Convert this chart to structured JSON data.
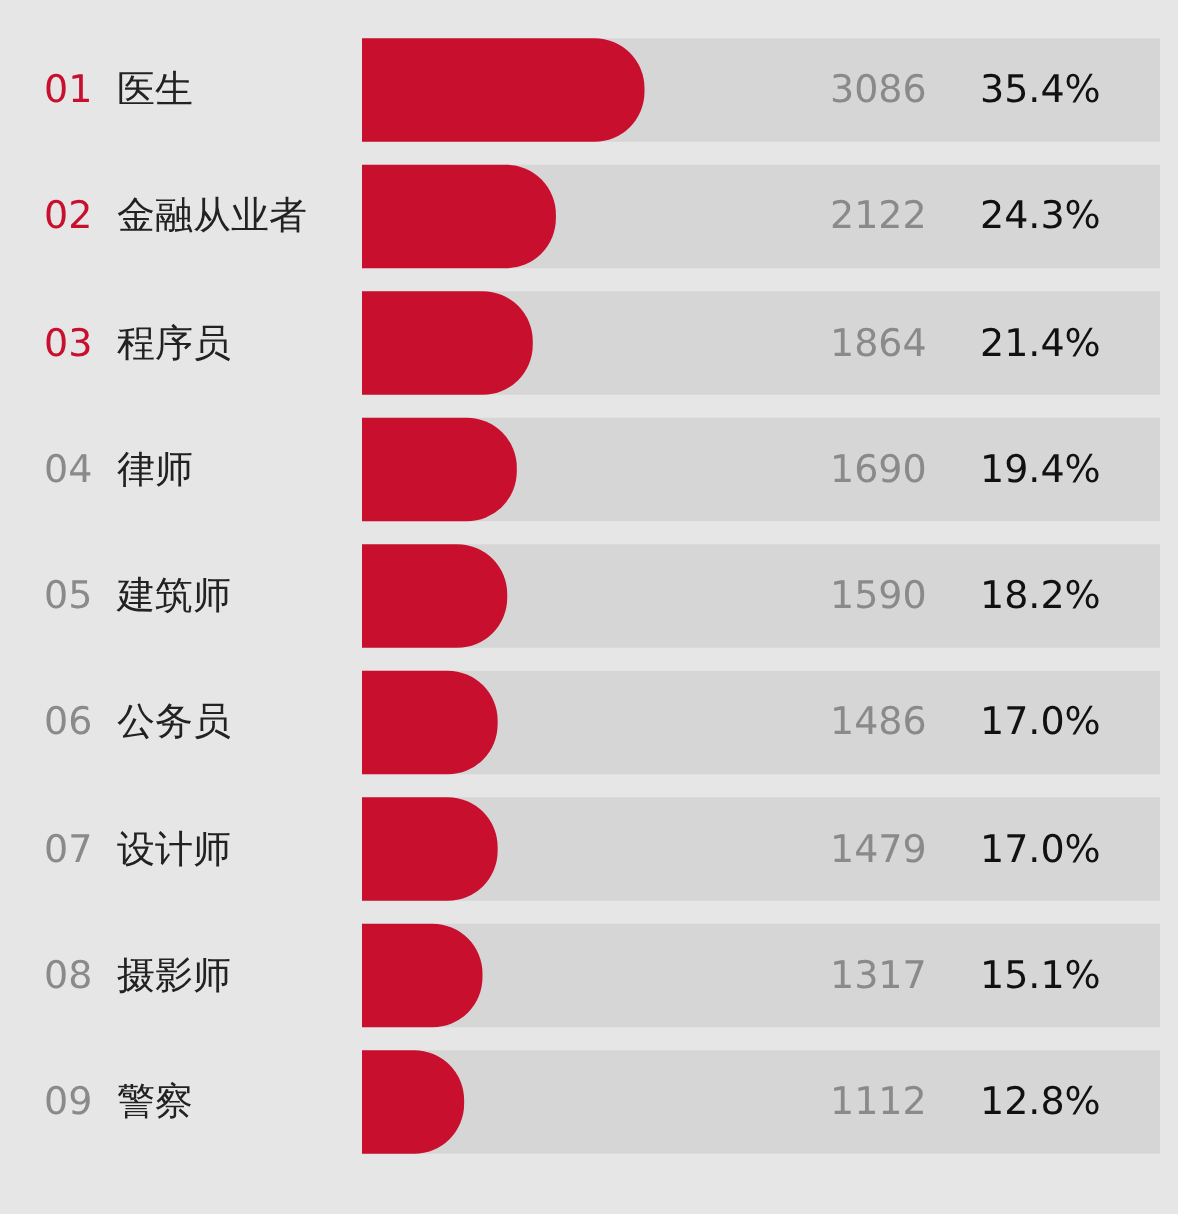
{
  "chart_data": {
    "type": "bar",
    "orientation": "horizontal",
    "categories": [
      "01 医生",
      "02 金融从业者",
      "03 程序员",
      "04 律师",
      "05 建筑师",
      "06 公务员",
      "07 设计师",
      "08 摄影师",
      "09 警察"
    ],
    "series": [
      {
        "color": "#c8102e",
        "values": [
          35.4,
          24.3,
          21.4,
          19.4,
          18.2,
          17.0,
          17.0,
          15.1,
          12.8
        ],
        "value_labels": [
          "35.4%",
          "24.3%",
          "21.4%",
          "19.4%",
          "18.2%",
          "17.0%",
          "17.0%",
          "15.1%",
          "12.8%"
        ]
      }
    ],
    "annotations": [
      "3086",
      "2122",
      "1864",
      "1690",
      "1590",
      "1486",
      "1479",
      "1317",
      "1112"
    ],
    "xlim": [
      0,
      100
    ],
    "tick_labels": false,
    "grid": false
  }
}
